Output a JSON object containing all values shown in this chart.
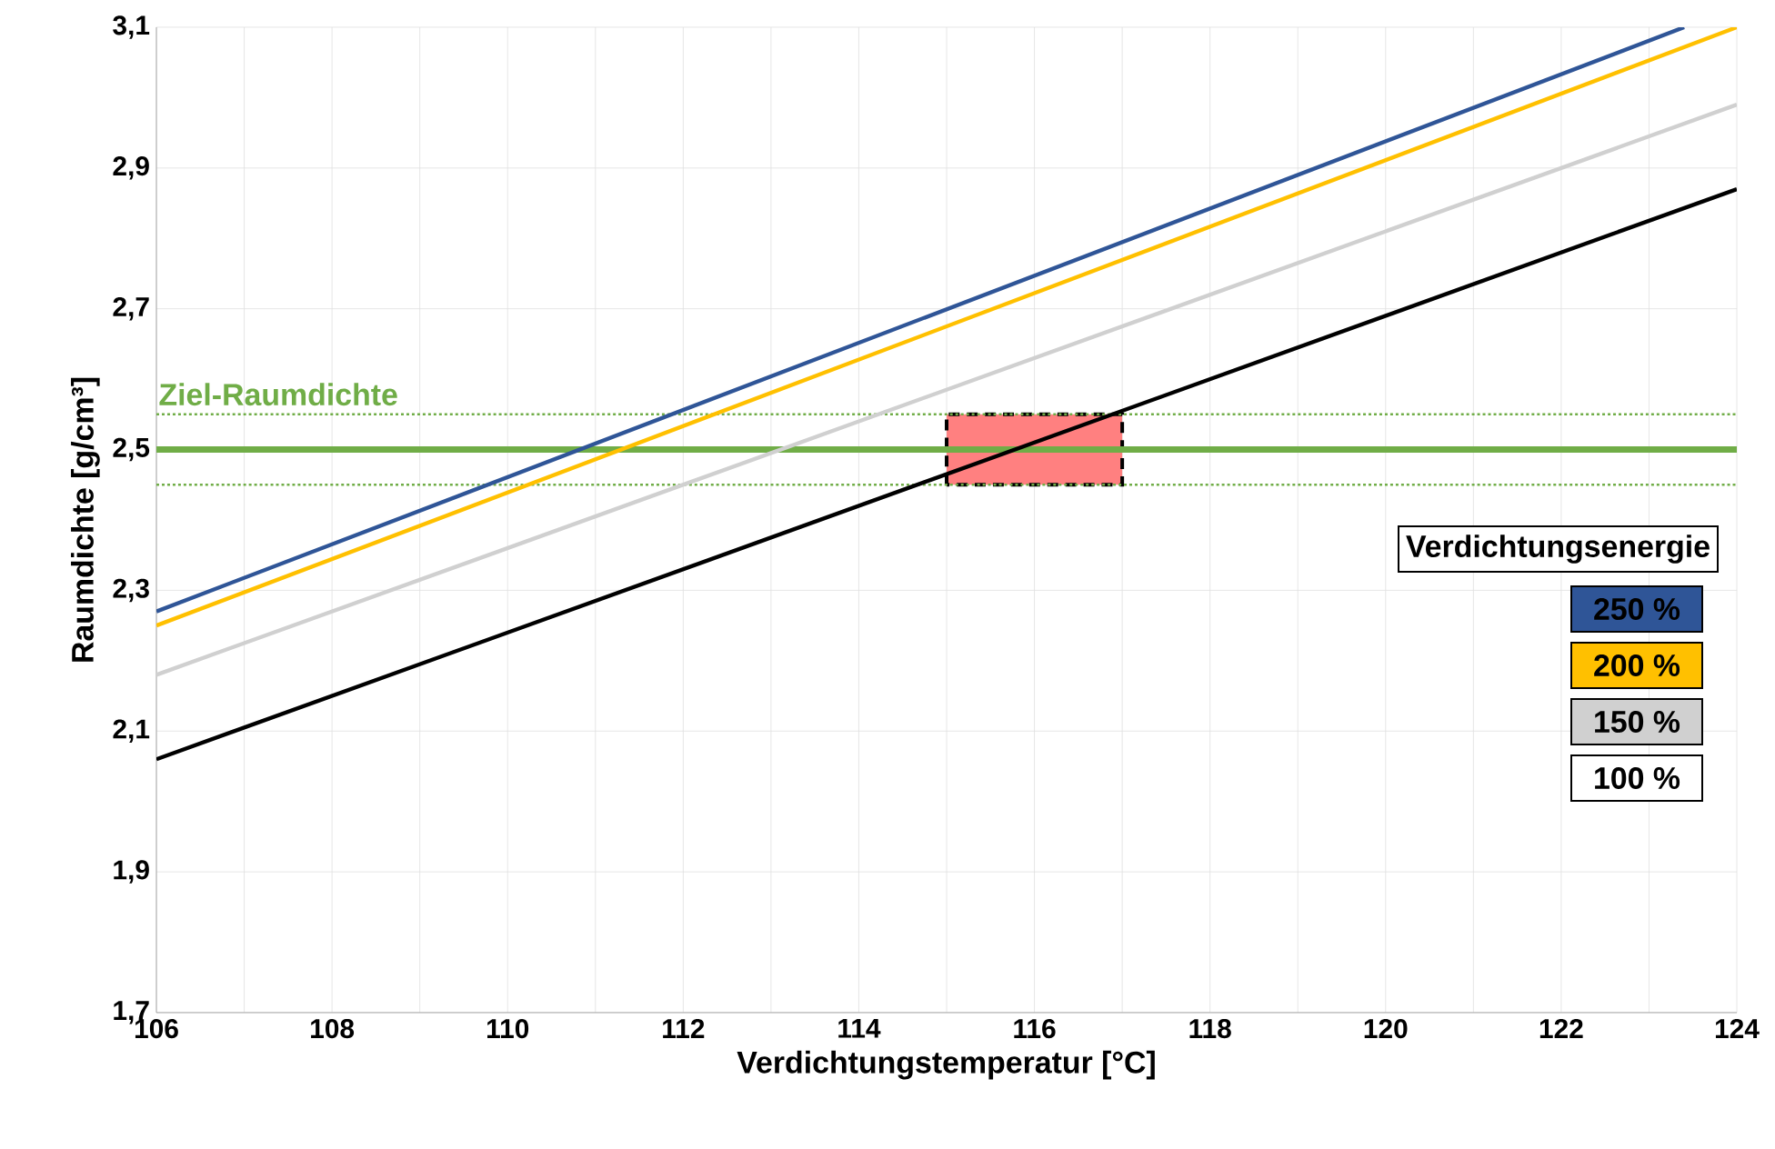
{
  "chart_data": {
    "type": "line",
    "xlabel": "Verdichtungstemperatur  [°C]",
    "ylabel": "Raumdichte [g/cm³]",
    "legend_title": "Verdichtungsenergie",
    "xlim": [
      106,
      124
    ],
    "xticks": [
      106,
      108,
      110,
      112,
      114,
      116,
      118,
      120,
      122,
      124
    ],
    "ylim": [
      1.7,
      3.1
    ],
    "yticks": [
      {
        "value": 1.7,
        "label": "1,7"
      },
      {
        "value": 1.9,
        "label": "1,9"
      },
      {
        "value": 2.1,
        "label": "2,1"
      },
      {
        "value": 2.3,
        "label": "2,3"
      },
      {
        "value": 2.5,
        "label": "2,5"
      },
      {
        "value": 2.7,
        "label": "2,7"
      },
      {
        "value": 2.9,
        "label": "2,9"
      },
      {
        "value": 3.1,
        "label": "3,1"
      }
    ],
    "grid": true,
    "legend": "right",
    "marker": "none",
    "series": [
      {
        "name": "250 %",
        "color": "#2f5597",
        "x": [
          106,
          123.4
        ],
        "values": [
          2.27,
          3.1
        ]
      },
      {
        "name": "200 %",
        "color": "#ffc000",
        "x": [
          106,
          124
        ],
        "values": [
          2.25,
          3.1
        ]
      },
      {
        "name": "150 %",
        "color": "#d0d0d0",
        "x": [
          106,
          124
        ],
        "values": [
          2.18,
          2.99
        ]
      },
      {
        "name": "100 %",
        "color": "#000000",
        "x": [
          106,
          124
        ],
        "values": [
          2.06,
          2.87
        ]
      }
    ],
    "ref_lines": [
      {
        "axis": "y",
        "value": 2.5,
        "label": "Ziel-Raumdichte",
        "color": "#70ad47",
        "line_style": "solid"
      },
      {
        "axis": "y",
        "value": 2.45,
        "color": "#70ad47",
        "line_style": "dotted"
      },
      {
        "axis": "y",
        "value": 2.55,
        "color": "#70ad47",
        "line_style": "dotted"
      }
    ],
    "bands": [
      {
        "axis": "x",
        "from": 115,
        "to": 117,
        "color": "#ff8080"
      }
    ]
  }
}
